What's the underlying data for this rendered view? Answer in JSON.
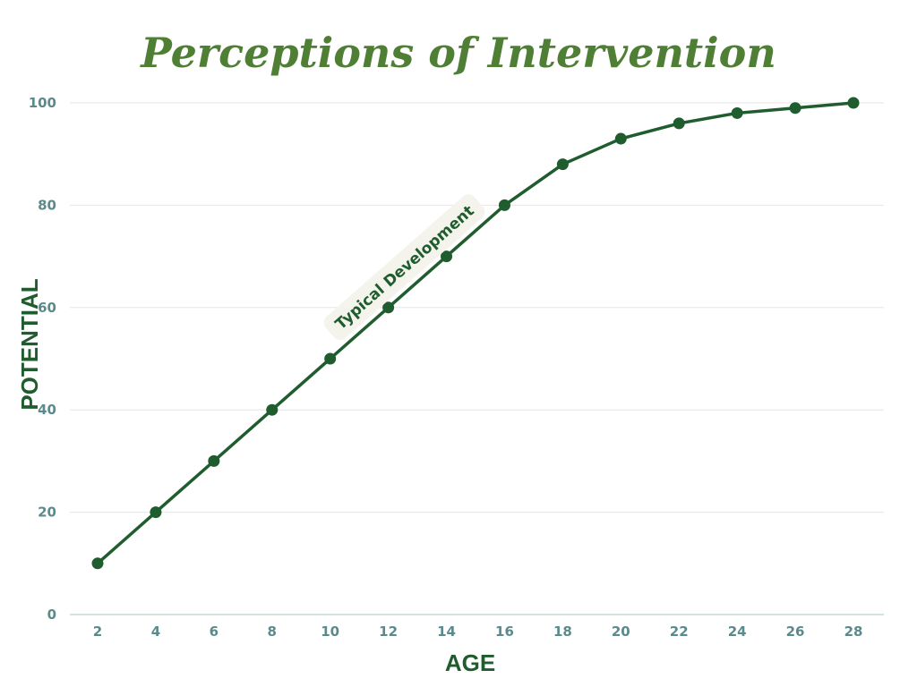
{
  "chart_data": {
    "type": "line",
    "title": "Perceptions of Intervention",
    "xlabel": "AGE",
    "ylabel": "POTENTIAL",
    "xlim": [
      2,
      28
    ],
    "ylim": [
      0,
      100
    ],
    "x_ticks": [
      "2",
      "4",
      "6",
      "8",
      "10",
      "12",
      "14",
      "16",
      "18",
      "20",
      "22",
      "24",
      "26",
      "28"
    ],
    "y_ticks": [
      "0",
      "20",
      "40",
      "60",
      "80",
      "100"
    ],
    "grid": true,
    "series": [
      {
        "name": "Typical Development",
        "color": "#1f5c2e",
        "x": [
          2,
          4,
          6,
          8,
          10,
          12,
          14,
          16,
          18,
          20,
          22,
          24,
          26,
          28
        ],
        "y": [
          10,
          20,
          30,
          40,
          50,
          60,
          70,
          80,
          88,
          93,
          96,
          98,
          99,
          100
        ]
      }
    ],
    "annotations": [
      {
        "text": "Typical Development",
        "series": "Typical Development"
      }
    ]
  },
  "colors": {
    "line": "#1f5c2e",
    "title": "#4f7f35",
    "axis_title": "#1f5c2e",
    "tick_label": "#5a8a8c",
    "grid": "#e6e6e6",
    "annotation_bg": "#f4f4ec"
  }
}
